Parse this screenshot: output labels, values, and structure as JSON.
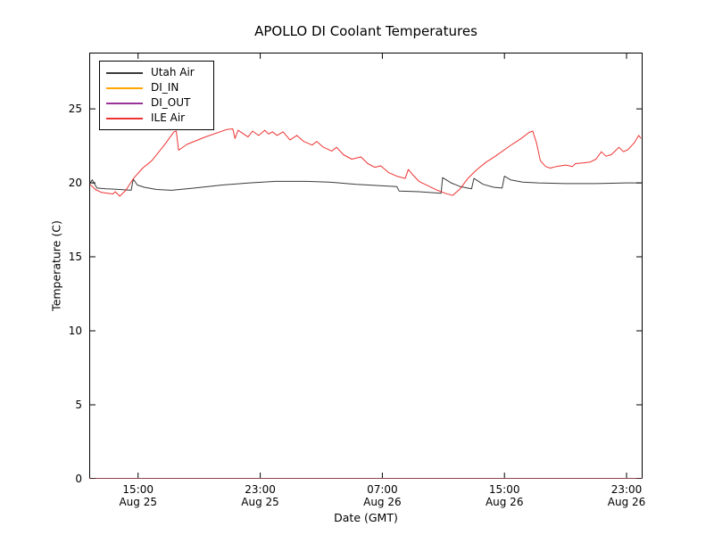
{
  "figure": {
    "background_color": "#ffffff",
    "axes_frame_color": "#000000",
    "bottom_edge_blend_color": "#8c424c"
  },
  "chart_data": {
    "type": "line",
    "title": "APOLLO DI Coolant Temperatures",
    "xlabel": "Date (GMT)",
    "ylabel": "Temperature (C)",
    "grid": false,
    "legend_position": "upper left",
    "x_unit": "hours since Aug 25 00:00 GMT",
    "xlim": [
      11.8,
      48.05
    ],
    "ylim": [
      0,
      28.8
    ],
    "yticks": [
      0,
      5,
      10,
      15,
      20,
      25
    ],
    "xticks": [
      {
        "value": 15,
        "time": "15:00",
        "date": "Aug 25"
      },
      {
        "value": 23,
        "time": "23:00",
        "date": "Aug 25"
      },
      {
        "value": 31,
        "time": "07:00",
        "date": "Aug 26"
      },
      {
        "value": 39,
        "time": "15:00",
        "date": "Aug 26"
      },
      {
        "value": 47,
        "time": "23:00",
        "date": "Aug 26"
      }
    ],
    "series": [
      {
        "name": "Utah Air",
        "color": "#3a3a3a",
        "opacity": 1,
        "points": [
          [
            11.85,
            20.0
          ],
          [
            12.0,
            20.2
          ],
          [
            12.3,
            19.65
          ],
          [
            12.9,
            19.6
          ],
          [
            13.8,
            19.55
          ],
          [
            14.55,
            19.5
          ],
          [
            14.68,
            20.25
          ],
          [
            14.95,
            19.85
          ],
          [
            15.4,
            19.7
          ],
          [
            16.2,
            19.55
          ],
          [
            17.2,
            19.5
          ],
          [
            18.7,
            19.65
          ],
          [
            20.5,
            19.85
          ],
          [
            22.3,
            20.0
          ],
          [
            24.0,
            20.1
          ],
          [
            26.0,
            20.1
          ],
          [
            27.5,
            20.05
          ],
          [
            29.3,
            19.9
          ],
          [
            31.0,
            19.8
          ],
          [
            31.95,
            19.75
          ],
          [
            32.1,
            19.45
          ],
          [
            33.4,
            19.4
          ],
          [
            34.85,
            19.3
          ],
          [
            34.95,
            20.35
          ],
          [
            35.5,
            20.0
          ],
          [
            36.1,
            19.75
          ],
          [
            36.85,
            19.6
          ],
          [
            37.0,
            20.3
          ],
          [
            37.6,
            19.9
          ],
          [
            38.3,
            19.7
          ],
          [
            38.85,
            19.65
          ],
          [
            39.0,
            20.45
          ],
          [
            39.4,
            20.2
          ],
          [
            40.2,
            20.05
          ],
          [
            41.2,
            20.0
          ],
          [
            43.0,
            19.95
          ],
          [
            45.0,
            19.95
          ],
          [
            47.0,
            20.0
          ],
          [
            47.95,
            20.0
          ]
        ]
      },
      {
        "name": "DI_IN",
        "color": "#ffa500",
        "opacity": 0.5,
        "points": [
          [
            11.8,
            0
          ],
          [
            48.05,
            0
          ]
        ]
      },
      {
        "name": "DI_OUT",
        "color": "#993399",
        "opacity": 0.5,
        "points": [
          [
            11.8,
            0
          ],
          [
            48.05,
            0
          ]
        ]
      },
      {
        "name": "ILE Air",
        "color": "#ee3333",
        "opacity": 1,
        "points": [
          [
            11.85,
            19.9
          ],
          [
            12.2,
            19.55
          ],
          [
            12.6,
            19.35
          ],
          [
            13.0,
            19.3
          ],
          [
            13.35,
            19.25
          ],
          [
            13.5,
            19.4
          ],
          [
            13.8,
            19.1
          ],
          [
            14.2,
            19.5
          ],
          [
            14.7,
            20.3
          ],
          [
            15.3,
            21.0
          ],
          [
            15.9,
            21.5
          ],
          [
            16.75,
            22.6
          ],
          [
            17.35,
            23.45
          ],
          [
            17.5,
            23.5
          ],
          [
            17.65,
            22.2
          ],
          [
            18.2,
            22.6
          ],
          [
            19.4,
            23.1
          ],
          [
            20.8,
            23.6
          ],
          [
            21.2,
            23.65
          ],
          [
            21.35,
            23.0
          ],
          [
            21.55,
            23.55
          ],
          [
            22.2,
            23.1
          ],
          [
            22.5,
            23.5
          ],
          [
            22.9,
            23.2
          ],
          [
            23.3,
            23.55
          ],
          [
            23.55,
            23.3
          ],
          [
            23.8,
            23.45
          ],
          [
            24.1,
            23.2
          ],
          [
            24.5,
            23.45
          ],
          [
            24.95,
            22.9
          ],
          [
            25.4,
            23.2
          ],
          [
            25.85,
            22.8
          ],
          [
            26.4,
            22.55
          ],
          [
            26.7,
            22.8
          ],
          [
            27.15,
            22.4
          ],
          [
            27.7,
            22.15
          ],
          [
            28.0,
            22.4
          ],
          [
            28.45,
            21.9
          ],
          [
            29.0,
            21.6
          ],
          [
            29.6,
            21.75
          ],
          [
            30.05,
            21.3
          ],
          [
            30.5,
            21.05
          ],
          [
            30.9,
            21.15
          ],
          [
            31.4,
            20.7
          ],
          [
            31.95,
            20.45
          ],
          [
            32.5,
            20.3
          ],
          [
            32.7,
            20.9
          ],
          [
            32.95,
            20.6
          ],
          [
            33.4,
            20.1
          ],
          [
            34.0,
            19.8
          ],
          [
            34.6,
            19.5
          ],
          [
            35.1,
            19.3
          ],
          [
            35.6,
            19.15
          ],
          [
            36.1,
            19.6
          ],
          [
            36.6,
            20.3
          ],
          [
            37.2,
            20.9
          ],
          [
            37.8,
            21.4
          ],
          [
            38.4,
            21.8
          ],
          [
            38.95,
            22.2
          ],
          [
            39.5,
            22.6
          ],
          [
            40.1,
            23.0
          ],
          [
            40.6,
            23.4
          ],
          [
            40.85,
            23.5
          ],
          [
            41.1,
            22.7
          ],
          [
            41.35,
            21.5
          ],
          [
            41.7,
            21.1
          ],
          [
            42.0,
            21.0
          ],
          [
            42.4,
            21.1
          ],
          [
            43.0,
            21.2
          ],
          [
            43.45,
            21.1
          ],
          [
            43.65,
            21.3
          ],
          [
            44.2,
            21.35
          ],
          [
            44.6,
            21.4
          ],
          [
            45.0,
            21.6
          ],
          [
            45.35,
            22.1
          ],
          [
            45.65,
            21.8
          ],
          [
            46.0,
            21.9
          ],
          [
            46.5,
            22.4
          ],
          [
            46.8,
            22.1
          ],
          [
            47.1,
            22.25
          ],
          [
            47.5,
            22.7
          ],
          [
            47.8,
            23.2
          ],
          [
            47.95,
            23.0
          ]
        ]
      }
    ]
  }
}
